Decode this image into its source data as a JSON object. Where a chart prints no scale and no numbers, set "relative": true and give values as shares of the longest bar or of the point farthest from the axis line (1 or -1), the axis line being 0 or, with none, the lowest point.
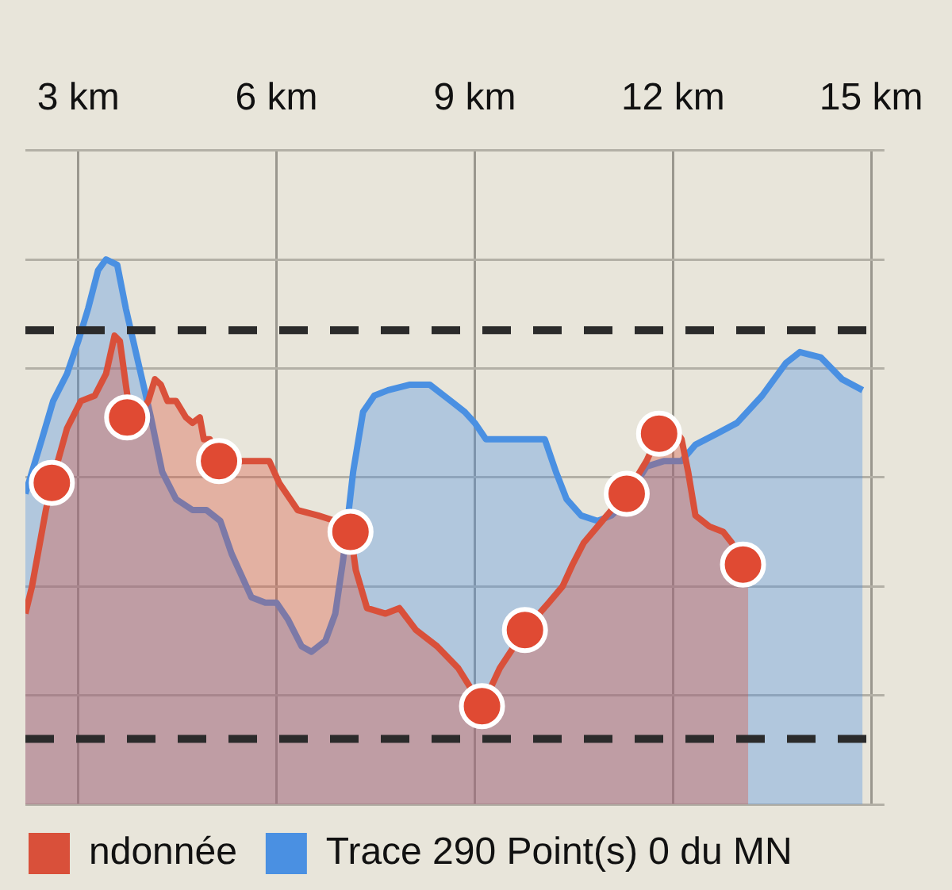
{
  "chart_data": {
    "type": "area",
    "relative": true,
    "xlim": [
      2.2,
      15.2
    ],
    "xticks": [
      {
        "value": 3,
        "label": "3 km"
      },
      {
        "value": 6,
        "label": "6 km"
      },
      {
        "value": 9,
        "label": "9 km"
      },
      {
        "value": 12,
        "label": "12 km"
      },
      {
        "value": 15,
        "label": "15 km"
      }
    ],
    "grid": true,
    "legend": "bottom",
    "ref_lines": [
      {
        "axis": "y",
        "value": 0.87,
        "color": "#2b2b2b",
        "line_style": "dashed"
      },
      {
        "axis": "y",
        "value": 0.12,
        "color": "#2b2b2b",
        "line_style": "dashed"
      }
    ],
    "series": [
      {
        "name": "ndonnée",
        "type": "area",
        "color": "#d9503a",
        "x": [
          2.2,
          2.3,
          2.51,
          2.6,
          2.83,
          3.04,
          3.25,
          3.42,
          3.55,
          3.63,
          3.72,
          3.78,
          3.89,
          4.06,
          4.16,
          4.25,
          4.35,
          4.48,
          4.63,
          4.73,
          4.84,
          4.9,
          4.99,
          5.09,
          5.26,
          5.47,
          5.75,
          5.89,
          6.04,
          6.32,
          6.63,
          6.89,
          7.12,
          7.2,
          7.37,
          7.65,
          7.86,
          8.11,
          8.43,
          8.75,
          9.11,
          9.38,
          9.76,
          10.12,
          10.33,
          10.48,
          10.65,
          10.86,
          11.07,
          11.3,
          11.6,
          11.79,
          12.02,
          12.13,
          12.23,
          12.34,
          12.55,
          12.76,
          12.89,
          13.06,
          13.14
        ],
        "values": [
          0.35,
          0.4,
          0.54,
          0.59,
          0.69,
          0.74,
          0.75,
          0.79,
          0.86,
          0.85,
          0.77,
          0.72,
          0.71,
          0.74,
          0.78,
          0.77,
          0.74,
          0.74,
          0.71,
          0.7,
          0.71,
          0.67,
          0.67,
          0.63,
          0.61,
          0.63,
          0.63,
          0.63,
          0.59,
          0.54,
          0.53,
          0.52,
          0.5,
          0.43,
          0.36,
          0.35,
          0.36,
          0.32,
          0.29,
          0.25,
          0.18,
          0.25,
          0.32,
          0.37,
          0.4,
          0.44,
          0.48,
          0.51,
          0.54,
          0.57,
          0.63,
          0.68,
          0.69,
          0.67,
          0.61,
          0.53,
          0.51,
          0.5,
          0.48,
          0.44,
          0.42
        ]
      },
      {
        "name": "Trace 290 Point(s) 0 du MN",
        "type": "area",
        "color": "#4a90e2",
        "x": [
          2.2,
          2.3,
          2.45,
          2.62,
          2.83,
          3.0,
          3.15,
          3.3,
          3.42,
          3.59,
          3.72,
          3.89,
          4.1,
          4.27,
          4.48,
          4.73,
          4.94,
          5.15,
          5.32,
          5.47,
          5.62,
          5.83,
          6.0,
          6.17,
          6.38,
          6.53,
          6.74,
          6.89,
          7.01,
          7.16,
          7.31,
          7.48,
          7.69,
          8.01,
          8.32,
          8.64,
          8.85,
          9.0,
          9.17,
          9.49,
          10.06,
          10.23,
          10.39,
          10.61,
          10.86,
          11.07,
          11.24,
          11.6,
          11.87,
          12.13,
          12.34,
          12.66,
          12.97,
          13.35,
          13.71,
          13.92,
          14.24,
          14.56,
          14.87
        ],
        "values": [
          0.57,
          0.61,
          0.67,
          0.74,
          0.79,
          0.85,
          0.91,
          0.98,
          1.0,
          0.99,
          0.91,
          0.82,
          0.71,
          0.61,
          0.56,
          0.54,
          0.54,
          0.52,
          0.46,
          0.42,
          0.38,
          0.37,
          0.37,
          0.34,
          0.29,
          0.28,
          0.3,
          0.35,
          0.45,
          0.61,
          0.72,
          0.75,
          0.76,
          0.77,
          0.77,
          0.74,
          0.72,
          0.7,
          0.67,
          0.67,
          0.67,
          0.61,
          0.56,
          0.53,
          0.52,
          0.53,
          0.55,
          0.62,
          0.63,
          0.63,
          0.66,
          0.68,
          0.7,
          0.75,
          0.81,
          0.83,
          0.82,
          0.78,
          0.76
        ]
      },
      {
        "type": "scatter",
        "color": "#e04a33",
        "marker": "circle",
        "x": [
          2.6,
          3.74,
          5.13,
          7.12,
          9.11,
          9.76,
          11.3,
          11.79,
          13.06
        ],
        "values": [
          0.59,
          0.71,
          0.63,
          0.5,
          0.18,
          0.32,
          0.57,
          0.68,
          0.44
        ]
      }
    ]
  }
}
